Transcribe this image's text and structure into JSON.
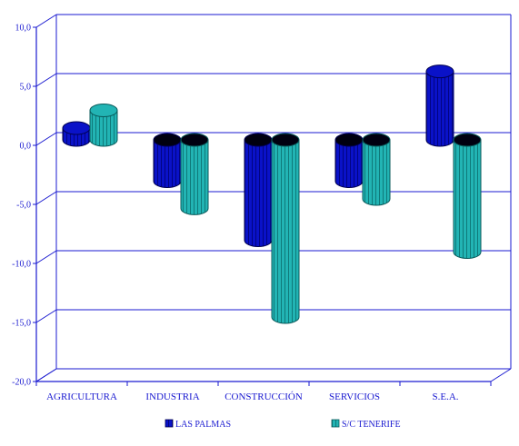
{
  "chart_data": {
    "type": "bar",
    "title": "",
    "xlabel": "",
    "ylabel": "",
    "ylim": [
      -20,
      10
    ],
    "yticks": [
      10,
      5,
      0,
      -5,
      -10,
      -15,
      -20
    ],
    "ytick_labels": [
      "10,0",
      "5,0",
      "0,0",
      "-5,0",
      "-10,0",
      "-15,0",
      "-20,0"
    ],
    "categories": [
      "AGRICULTURA",
      "INDUSTRIA",
      "CONSTRUCCIÓN",
      "SERVICIOS",
      "S.E.A."
    ],
    "series": [
      {
        "name": "LAS PALMAS",
        "values": [
          1.0,
          -3.5,
          -8.5,
          -3.5,
          5.8
        ],
        "color": "#0a12c8"
      },
      {
        "name": "S/C TENERIFE",
        "values": [
          2.5,
          -5.8,
          -15.0,
          -5.0,
          -9.5
        ],
        "color": "#22b4b4"
      }
    ],
    "legend_position": "bottom",
    "grid": true,
    "bar_style": "3d-cylinder",
    "axis_color": "#1a1ad0"
  }
}
